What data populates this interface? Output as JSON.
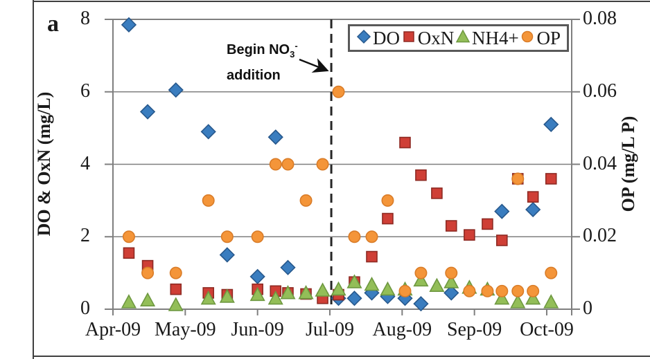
{
  "panel_label": "a",
  "annotation": {
    "line1_prefix": "Begin NO",
    "line1_sub": "3",
    "line1_sup": "-",
    "line2": "addition"
  },
  "colors": {
    "grid": "#7f7f7f",
    "plot_border": "#7f7f7f",
    "event_line": "#262626",
    "arrow": "#111111",
    "legend_border": "#595959",
    "frame": "#3f3f3f"
  },
  "chart_data": {
    "type": "scatter",
    "title": "",
    "x_unit": "months (0 = Apr-09 tick, 6 = Oct-09 tick)",
    "x_tick_labels": [
      "Apr-09",
      "May-09",
      "Jun-09",
      "Jul-09",
      "Aug-09",
      "Sep-09",
      "Oct-09"
    ],
    "x_range_months": [
      0,
      6.35
    ],
    "grid": true,
    "legend_position": "top-right-inside",
    "y_left": {
      "label": "DO & OxN (mg/L)",
      "tick_labels": [
        "0",
        "2",
        "4",
        "6",
        "8"
      ],
      "tick_values": [
        0,
        2,
        4,
        6,
        8
      ],
      "range": [
        0,
        8
      ]
    },
    "y_right": {
      "label": "OP (mg/L P)",
      "tick_labels": [
        "0",
        "0.02",
        "0.04",
        "0.06",
        "0.08"
      ],
      "tick_values": [
        0,
        0.02,
        0.04,
        0.06,
        0.08
      ],
      "range": [
        0,
        0.08
      ]
    },
    "event_line": {
      "x_month": 3.02,
      "style": "dashed-vertical"
    },
    "series": [
      {
        "name": "DO",
        "axis": "left",
        "marker": "diamond",
        "fill": "#3a7dbf",
        "edge": "#27588c",
        "points": [
          [
            0.22,
            7.85
          ],
          [
            0.48,
            5.45
          ],
          [
            0.87,
            6.05
          ],
          [
            1.32,
            4.9
          ],
          [
            1.58,
            1.5
          ],
          [
            2.0,
            0.9
          ],
          [
            2.25,
            4.75
          ],
          [
            2.42,
            1.15
          ],
          [
            3.12,
            0.3
          ],
          [
            3.34,
            0.3
          ],
          [
            3.58,
            0.45
          ],
          [
            3.8,
            0.35
          ],
          [
            4.04,
            0.3
          ],
          [
            4.26,
            0.15
          ],
          [
            4.68,
            0.45
          ],
          [
            5.38,
            2.7
          ],
          [
            5.81,
            2.75
          ],
          [
            6.06,
            5.1
          ]
        ]
      },
      {
        "name": "OxN",
        "axis": "left",
        "marker": "square",
        "fill": "#cf3f36",
        "edge": "#8e2a23",
        "points": [
          [
            0.22,
            1.55
          ],
          [
            0.48,
            1.2
          ],
          [
            0.87,
            0.55
          ],
          [
            1.32,
            0.45
          ],
          [
            1.58,
            0.4
          ],
          [
            2.0,
            0.55
          ],
          [
            2.25,
            0.5
          ],
          [
            2.42,
            0.45
          ],
          [
            2.67,
            0.42
          ],
          [
            2.9,
            0.3
          ],
          [
            3.12,
            0.4
          ],
          [
            3.34,
            0.75
          ],
          [
            3.58,
            1.45
          ],
          [
            3.8,
            2.5
          ],
          [
            4.04,
            4.6
          ],
          [
            4.26,
            3.7
          ],
          [
            4.48,
            3.2
          ],
          [
            4.68,
            2.3
          ],
          [
            4.93,
            2.05
          ],
          [
            5.18,
            2.35
          ],
          [
            5.38,
            1.9
          ],
          [
            5.6,
            3.6
          ],
          [
            5.81,
            3.1
          ],
          [
            6.06,
            3.6
          ]
        ]
      },
      {
        "name": "NH4+",
        "axis": "left",
        "marker": "triangle",
        "fill": "#93be58",
        "edge": "#6e9840",
        "points": [
          [
            0.22,
            0.2
          ],
          [
            0.48,
            0.25
          ],
          [
            0.87,
            0.12
          ],
          [
            1.32,
            0.3
          ],
          [
            1.58,
            0.35
          ],
          [
            2.0,
            0.4
          ],
          [
            2.25,
            0.3
          ],
          [
            2.42,
            0.45
          ],
          [
            2.67,
            0.45
          ],
          [
            2.9,
            0.52
          ],
          [
            3.12,
            0.55
          ],
          [
            3.34,
            0.75
          ],
          [
            3.58,
            0.68
          ],
          [
            3.8,
            0.55
          ],
          [
            4.04,
            0.55
          ],
          [
            4.26,
            0.8
          ],
          [
            4.48,
            0.65
          ],
          [
            4.68,
            0.75
          ],
          [
            4.93,
            0.6
          ],
          [
            5.18,
            0.55
          ],
          [
            5.38,
            0.3
          ],
          [
            5.6,
            0.2
          ],
          [
            5.81,
            0.3
          ],
          [
            6.06,
            0.2
          ]
        ]
      },
      {
        "name": "OP",
        "axis": "right",
        "marker": "circle",
        "fill": "#f49539",
        "edge": "#d97c28",
        "points": [
          [
            0.22,
            0.02
          ],
          [
            0.48,
            0.01
          ],
          [
            0.87,
            0.01
          ],
          [
            1.32,
            0.03
          ],
          [
            1.58,
            0.02
          ],
          [
            2.0,
            0.02
          ],
          [
            2.25,
            0.04
          ],
          [
            2.42,
            0.04
          ],
          [
            2.67,
            0.03
          ],
          [
            2.9,
            0.04
          ],
          [
            3.12,
            0.06
          ],
          [
            3.34,
            0.02
          ],
          [
            3.58,
            0.02
          ],
          [
            3.8,
            0.03
          ],
          [
            4.04,
            0.005
          ],
          [
            4.26,
            0.01
          ],
          [
            4.68,
            0.01
          ],
          [
            4.93,
            0.005
          ],
          [
            5.18,
            0.005
          ],
          [
            5.38,
            0.005
          ],
          [
            5.6,
            0.036
          ],
          [
            5.6,
            0.005
          ],
          [
            5.81,
            0.005
          ],
          [
            6.06,
            0.01
          ]
        ]
      }
    ]
  }
}
